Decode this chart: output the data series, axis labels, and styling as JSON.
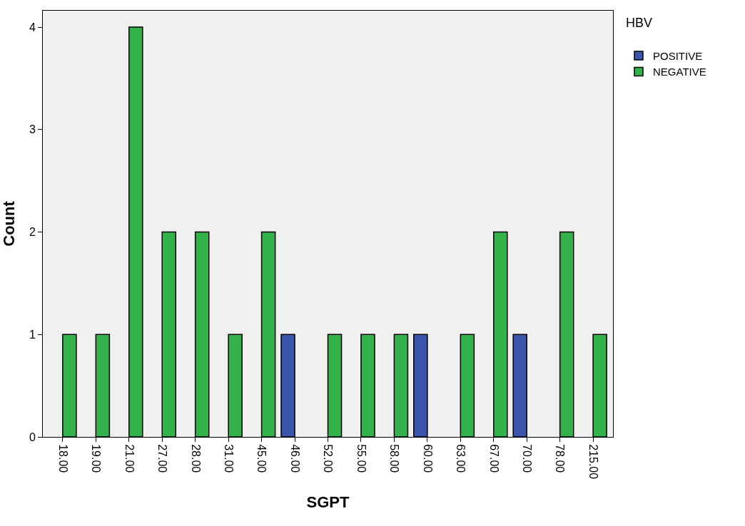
{
  "chart_data": {
    "type": "bar",
    "xlabel": "SGPT",
    "ylabel": "Count",
    "legend_title": "HBV",
    "categories": [
      "18.00",
      "19.00",
      "21.00",
      "27.00",
      "28.00",
      "31.00",
      "45.00",
      "46.00",
      "52.00",
      "55.00",
      "58.00",
      "60.00",
      "63.00",
      "67.00",
      "70.00",
      "78.00",
      "215.00"
    ],
    "series": [
      {
        "name": "POSITIVE",
        "color": "#3a55a9",
        "values": [
          null,
          null,
          null,
          null,
          null,
          null,
          null,
          1,
          null,
          null,
          null,
          1,
          null,
          null,
          1,
          null,
          null
        ]
      },
      {
        "name": "NEGATIVE",
        "color": "#33b24b",
        "values": [
          1,
          1,
          4,
          2,
          2,
          1,
          2,
          null,
          1,
          1,
          1,
          null,
          1,
          2,
          null,
          2,
          1
        ]
      }
    ],
    "ylim": [
      0,
      4.16
    ],
    "yticks": [
      0,
      1,
      2,
      3,
      4
    ],
    "grid": false,
    "legend": "top right"
  }
}
